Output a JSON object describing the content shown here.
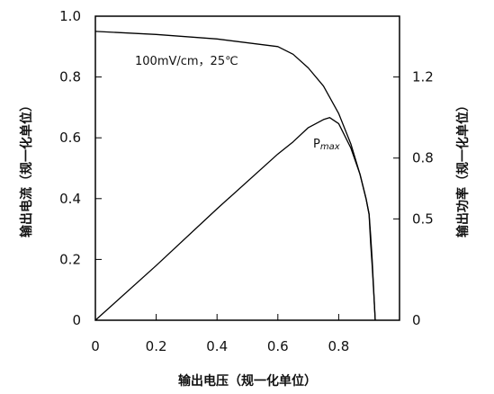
{
  "chart_data": {
    "type": "line",
    "xlabel": "输出电压（规一化单位）",
    "ylabel_left": "输出电流（规一化单位）",
    "ylabel_right": "输出功率（规一化单位）",
    "xlim": [
      0,
      1.0
    ],
    "ylim_left": [
      0,
      1.0
    ],
    "ylim_right": [
      0,
      1.5
    ],
    "x_ticks": [
      "0",
      "0.2",
      "0.4",
      "0.6",
      "0.8"
    ],
    "y_left_ticks": [
      "0",
      "0.2",
      "0.4",
      "0.6",
      "0.8",
      "1.0"
    ],
    "y_right_ticks": [
      "0",
      "0.5",
      "0.8",
      "1.2"
    ],
    "grid": false,
    "annotations": {
      "condition": "100mV/cm，25℃",
      "pmax": "P",
      "pmax_sub": "max"
    },
    "series": [
      {
        "axis": "left",
        "x": [
          0,
          0.2,
          0.4,
          0.6,
          0.65,
          0.7,
          0.75,
          0.8,
          0.84,
          0.87,
          0.89,
          0.9,
          0.905,
          0.91,
          0.915,
          0.92
        ],
        "y": [
          0.95,
          0.94,
          0.925,
          0.9,
          0.875,
          0.83,
          0.77,
          0.68,
          0.58,
          0.48,
          0.4,
          0.35,
          0.28,
          0.2,
          0.1,
          0
        ]
      },
      {
        "axis": "right",
        "x": [
          0,
          0.2,
          0.4,
          0.6,
          0.65,
          0.7,
          0.75,
          0.77,
          0.8,
          0.84,
          0.87,
          0.89,
          0.9,
          0.905,
          0.91,
          0.915,
          0.92
        ],
        "y": [
          0,
          0.27,
          0.55,
          0.82,
          0.88,
          0.95,
          0.99,
          1.0,
          0.97,
          0.85,
          0.72,
          0.6,
          0.52,
          0.38,
          0.27,
          0.14,
          0
        ]
      }
    ]
  }
}
